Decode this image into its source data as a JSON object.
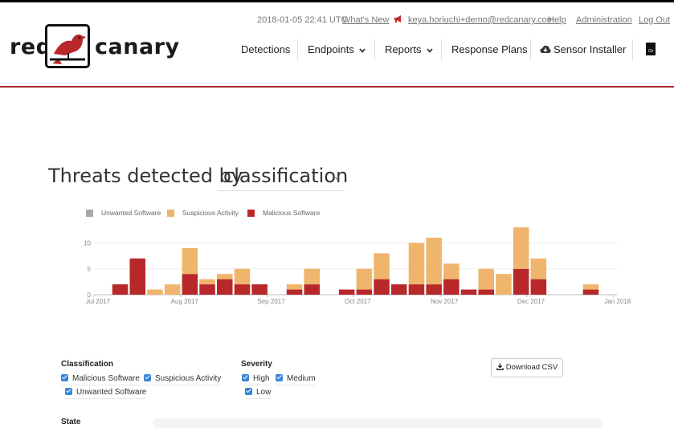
{
  "header": {
    "timestamp": "2018-01-05 22:41 UTC",
    "whats_new": "What's New",
    "user_email": "keya.horiuchi+demo@redcanary.com",
    "help": "Help",
    "administration": "Administration",
    "logout": "Log Out",
    "logo_left": "red",
    "logo_right": "canary"
  },
  "nav": {
    "detections": "Detections",
    "endpoints": "Endpoints",
    "reports": "Reports",
    "response_plans": "Response Plans",
    "sensor_installer": "Sensor Installer",
    "cb_badge": "Cb"
  },
  "chart_header": {
    "title": "Threats detected by",
    "select_value": "classification"
  },
  "colors": {
    "brand_red": "#a8282c",
    "unwanted": "#a8a8a8",
    "suspicious": "#f0b56c",
    "malicious": "#b8282a",
    "checkbox": "#3a86d9"
  },
  "chart_data": {
    "type": "bar",
    "stacked": true,
    "ylim": [
      0,
      14
    ],
    "yticks": [
      0,
      5,
      10
    ],
    "xticks": [
      "Jul 2017",
      "Aug 2017",
      "Sep 2017",
      "Oct 2017",
      "Nov 2017",
      "Dec 2017",
      "Jan 2018"
    ],
    "legend_position": "top-left",
    "grid": true,
    "series": [
      {
        "name": "Unwanted Software",
        "color": "#a8a8a8",
        "values": [
          0,
          0,
          0,
          0,
          0,
          0,
          0,
          0,
          0,
          0,
          0,
          0,
          0,
          0,
          0,
          0,
          0,
          0,
          0,
          0,
          0,
          0,
          0,
          0,
          0,
          0
        ]
      },
      {
        "name": "Suspicious Activity",
        "color": "#f0b56c",
        "values": [
          0,
          0,
          1,
          2,
          5,
          1,
          1,
          3,
          0,
          1,
          3,
          0,
          4,
          5,
          0,
          8,
          9,
          3,
          0,
          4,
          4,
          8,
          4,
          0,
          1,
          0
        ]
      },
      {
        "name": "Malicious Software",
        "color": "#b8282a",
        "values": [
          2,
          7,
          0,
          0,
          4,
          2,
          3,
          2,
          2,
          1,
          2,
          1,
          1,
          3,
          2,
          2,
          2,
          3,
          1,
          1,
          0,
          5,
          3,
          0,
          1,
          0
        ]
      }
    ],
    "bar_slots": [
      1,
      2,
      3,
      4,
      5,
      6,
      7,
      8,
      9,
      11,
      12,
      14,
      15,
      16,
      17,
      18,
      19,
      20,
      21,
      22,
      23,
      24,
      25,
      27,
      28,
      26
    ]
  },
  "filters": {
    "classification_label": "Classification",
    "classification": [
      "Malicious Software",
      "Suspicious Activity",
      "Unwanted Software"
    ],
    "severity_label": "Severity",
    "severity": [
      "High",
      "Medium",
      "Low"
    ],
    "state_label": "State",
    "download_csv": "Download CSV"
  }
}
